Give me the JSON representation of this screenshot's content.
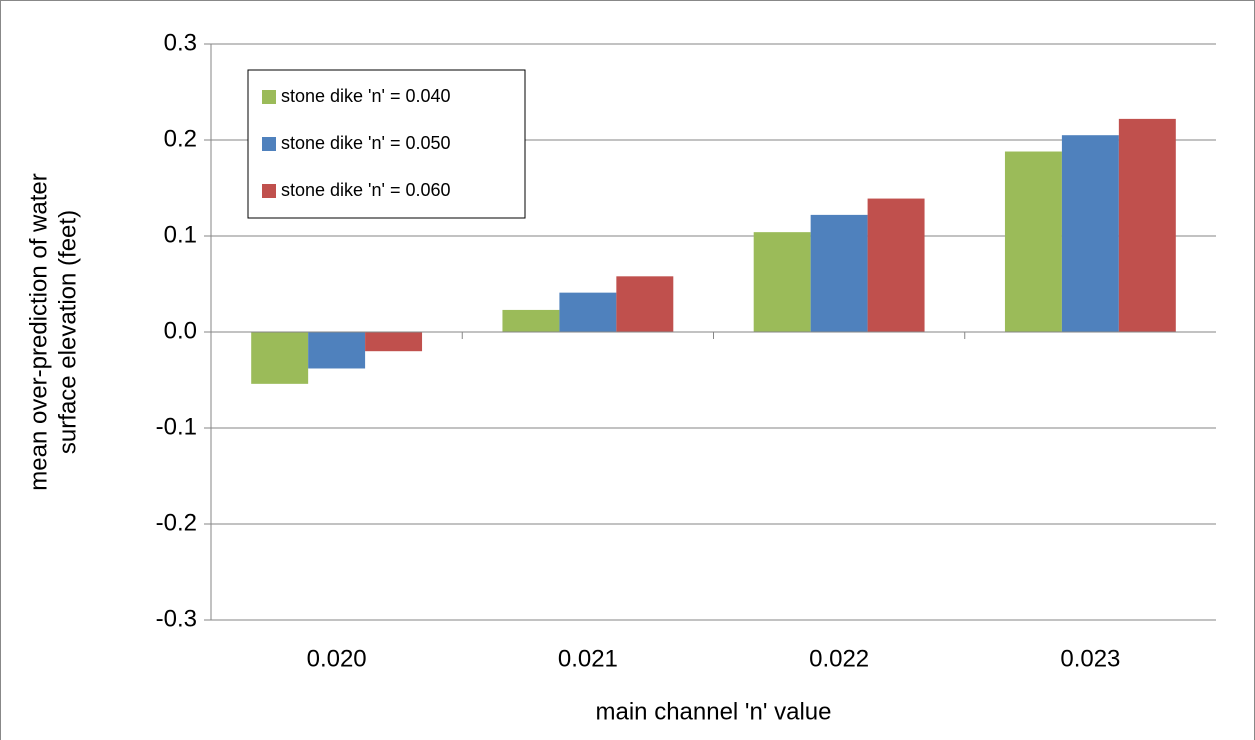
{
  "chart_data": {
    "type": "bar",
    "categories": [
      "0.020",
      "0.021",
      "0.022",
      "0.023"
    ],
    "series": [
      {
        "name": "stone dike 'n' = 0.040",
        "color": "#9bbb59",
        "values": [
          -0.054,
          0.023,
          0.104,
          0.188
        ]
      },
      {
        "name": "stone dike 'n' = 0.050",
        "color": "#4f81bd",
        "values": [
          -0.038,
          0.041,
          0.122,
          0.205
        ]
      },
      {
        "name": "stone dike 'n' = 0.060",
        "color": "#c0504d",
        "values": [
          -0.02,
          0.058,
          0.139,
          0.222
        ]
      }
    ],
    "xlabel": "main channel 'n' value",
    "ylabel": [
      "mean over-prediction of water",
      "surface elevation (feet)"
    ],
    "ylim": [
      -0.3,
      0.3
    ],
    "yticks": [
      -0.3,
      -0.2,
      -0.1,
      {
        "value": 0,
        "label": "0.0"
      },
      0.1,
      0.2,
      0.3
    ],
    "grid": true,
    "legend": "upper-left"
  }
}
